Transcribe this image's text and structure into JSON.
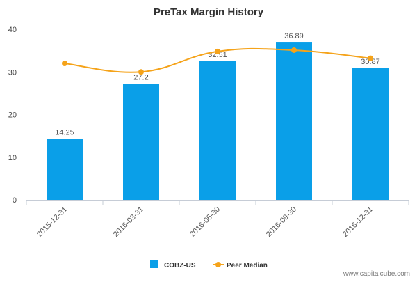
{
  "chart_data": {
    "type": "bar",
    "title": "PreTax Margin History",
    "categories": [
      "2015-12-31",
      "2016-03-31",
      "2016-06-30",
      "2016-09-30",
      "2016-12-31"
    ],
    "series": [
      {
        "name": "COBZ-US",
        "type": "bar",
        "color": "#0a9fe8",
        "values": [
          14.25,
          27.2,
          32.51,
          36.89,
          30.87
        ],
        "labels": [
          "14.25",
          "27.2",
          "32.51",
          "36.89",
          "30.87"
        ]
      },
      {
        "name": "Peer Median",
        "type": "line",
        "color": "#f5a31a",
        "values": [
          32.0,
          30.0,
          34.8,
          35.1,
          33.2
        ]
      }
    ],
    "yticks": [
      "0",
      "10",
      "20",
      "30",
      "40"
    ],
    "ylim": [
      0,
      40
    ],
    "grid": false,
    "legend": "bottom-center"
  },
  "watermark": "www.capitalcube.com"
}
